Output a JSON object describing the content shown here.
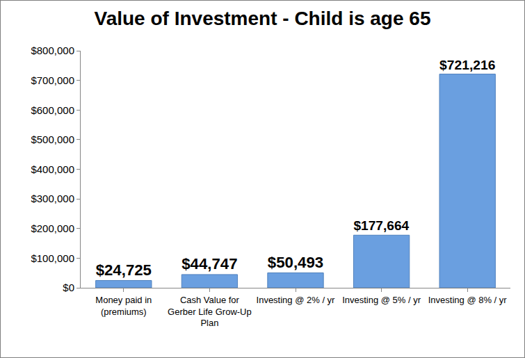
{
  "chart_data": {
    "type": "bar",
    "title": "Value of Investment - Child is age 65",
    "categories": [
      "Money paid in (premiums)",
      "Cash Value for Gerber Life Grow-Up Plan",
      "Investing @ 2% / yr",
      "Investing @ 5% / yr",
      "Investing @ 8% / yr"
    ],
    "values": [
      24725,
      44747,
      50493,
      177664,
      721216
    ],
    "value_labels": [
      "$24,725",
      "$44,747",
      "$50,493",
      "$177,664",
      "$721,216"
    ],
    "color": "#6a9fe0",
    "ylim": [
      0,
      800000
    ],
    "yticks": [
      {
        "value": 0,
        "label": "$0"
      },
      {
        "value": 100000,
        "label": "$100,000"
      },
      {
        "value": 200000,
        "label": "$200,000"
      },
      {
        "value": 300000,
        "label": "$300,000"
      },
      {
        "value": 400000,
        "label": "$400,000"
      },
      {
        "value": 500000,
        "label": "$500,000"
      },
      {
        "value": 600000,
        "label": "$600,000"
      },
      {
        "value": 700000,
        "label": "$700,000"
      },
      {
        "value": 800000,
        "label": "$800,000"
      }
    ],
    "grid": false,
    "data_labels": true
  }
}
